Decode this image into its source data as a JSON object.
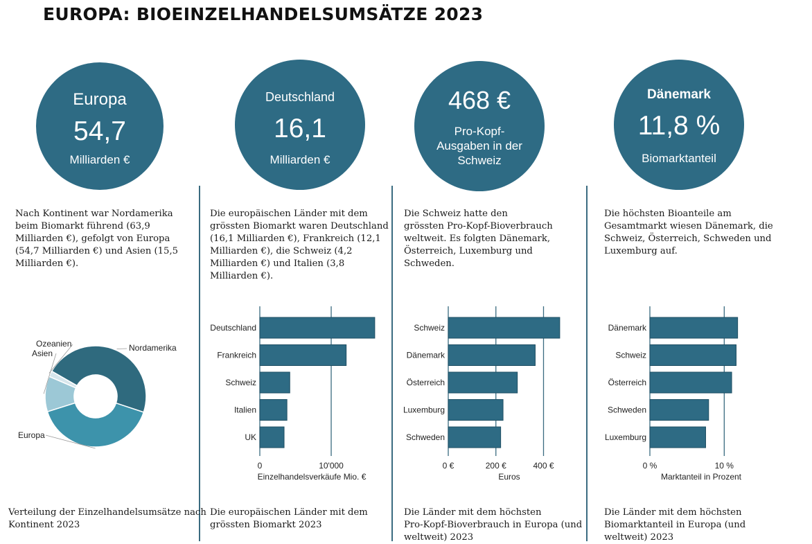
{
  "title": "EUROPA: BIOEINZELHANDELSUMSÄTZE 2023",
  "colors": {
    "circle": "#2e6b84",
    "bar": "#2e6b84",
    "axis": "#3a6b80",
    "donut": [
      "#2f6a7e",
      "#3d93ab",
      "#9cc8d6",
      "#d7e6ec"
    ]
  },
  "circles": [
    {
      "top": "Europa",
      "value": "54,7",
      "bottom": "Milliarden €"
    },
    {
      "top": "Deutschland",
      "value": "16,1",
      "bottom": "Milliarden €"
    },
    {
      "value": "468 €",
      "line1": "Pro-Kopf-",
      "line2": "Ausgaben in der",
      "line3": "Schweiz"
    },
    {
      "top": "Dänemark",
      "value": "11,8 %",
      "bottom": "Biomarktanteil"
    }
  ],
  "paragraphs": [
    [
      "Nach Kontinent war Nordamerika",
      "beim Biomarkt führend (63,9",
      "Milliarden €), gefolgt von Europa",
      "(54,7 Milliarden €) und Asien (15,5",
      "Milliarden €)."
    ],
    [
      "Die europäischen Länder mit dem",
      "grössten Biomarkt waren Deutschland",
      "(16,1 Milliarden €), Frankreich (12,1",
      "Milliarden €), die Schweiz (4,2",
      "Milliarden €) und Italien (3,8",
      "Milliarden €)."
    ],
    [
      "Die Schweiz hatte den",
      "grössten Pro-Kopf-Bioverbrauch",
      "weltweit. Es folgten Dänemark,",
      "Österreich, Luxemburg und",
      "Schweden."
    ],
    [
      "Die höchsten Bioanteile am",
      "Gesamtmarkt wiesen Dänemark,  die",
      "Schweiz, Österreich, Schweden und",
      "Luxemburg auf."
    ]
  ],
  "captions": [
    [
      "Verteilung der Einzelhandelsumsätze nach",
      "Kontinent 2023"
    ],
    [
      "Die europäischen Länder mit dem",
      "grössten Biomarkt 2023"
    ],
    [
      "Die Länder mit dem höchsten",
      "Pro-Kopf-Bioverbrauch in Europa (und",
      "weltweit) 2023"
    ],
    [
      "Die Länder mit dem höchsten",
      "Biomarktanteil in Europa (und",
      "weltweit) 2023"
    ]
  ],
  "chart_data": [
    {
      "type": "pie",
      "donut": true,
      "categories": [
        "Nordamerika",
        "Europa",
        "Asien",
        "Ozeanien"
      ],
      "values": [
        63.9,
        54.7,
        15.5,
        2.5
      ]
    },
    {
      "type": "bar",
      "orientation": "horizontal",
      "categories": [
        "Deutschland",
        "Frankreich",
        "Schweiz",
        "Italien",
        "UK"
      ],
      "values": [
        16100,
        12100,
        4200,
        3800,
        3400
      ],
      "xlim": [
        0,
        16500
      ],
      "ticks": [
        {
          "v": 0,
          "label": "0"
        },
        {
          "v": 10000,
          "label": "10'000"
        }
      ],
      "xlabel": "Einzelhandelsverkäufe Mio. €"
    },
    {
      "type": "bar",
      "orientation": "horizontal",
      "categories": [
        "Schweiz",
        "Dänemark",
        "Österreich",
        "Luxemburg",
        "Schweden"
      ],
      "values": [
        468,
        365,
        290,
        230,
        220
      ],
      "xlim": [
        0,
        480
      ],
      "ticks": [
        {
          "v": 0,
          "label": "0 €"
        },
        {
          "v": 200,
          "label": "200 €"
        },
        {
          "v": 400,
          "label": "400 €"
        }
      ],
      "xlabel": "Euros"
    },
    {
      "type": "bar",
      "orientation": "horizontal",
      "categories": [
        "Dänemark",
        "Schweiz",
        "Österreich",
        "Schweden",
        "Luxemburg"
      ],
      "values": [
        11.8,
        11.6,
        11.0,
        7.9,
        7.5
      ],
      "xlim": [
        0,
        12.3
      ],
      "ticks": [
        {
          "v": 0,
          "label": "0 %"
        },
        {
          "v": 10,
          "label": "10 %"
        }
      ],
      "xlabel": "Marktanteil in Prozent"
    }
  ]
}
